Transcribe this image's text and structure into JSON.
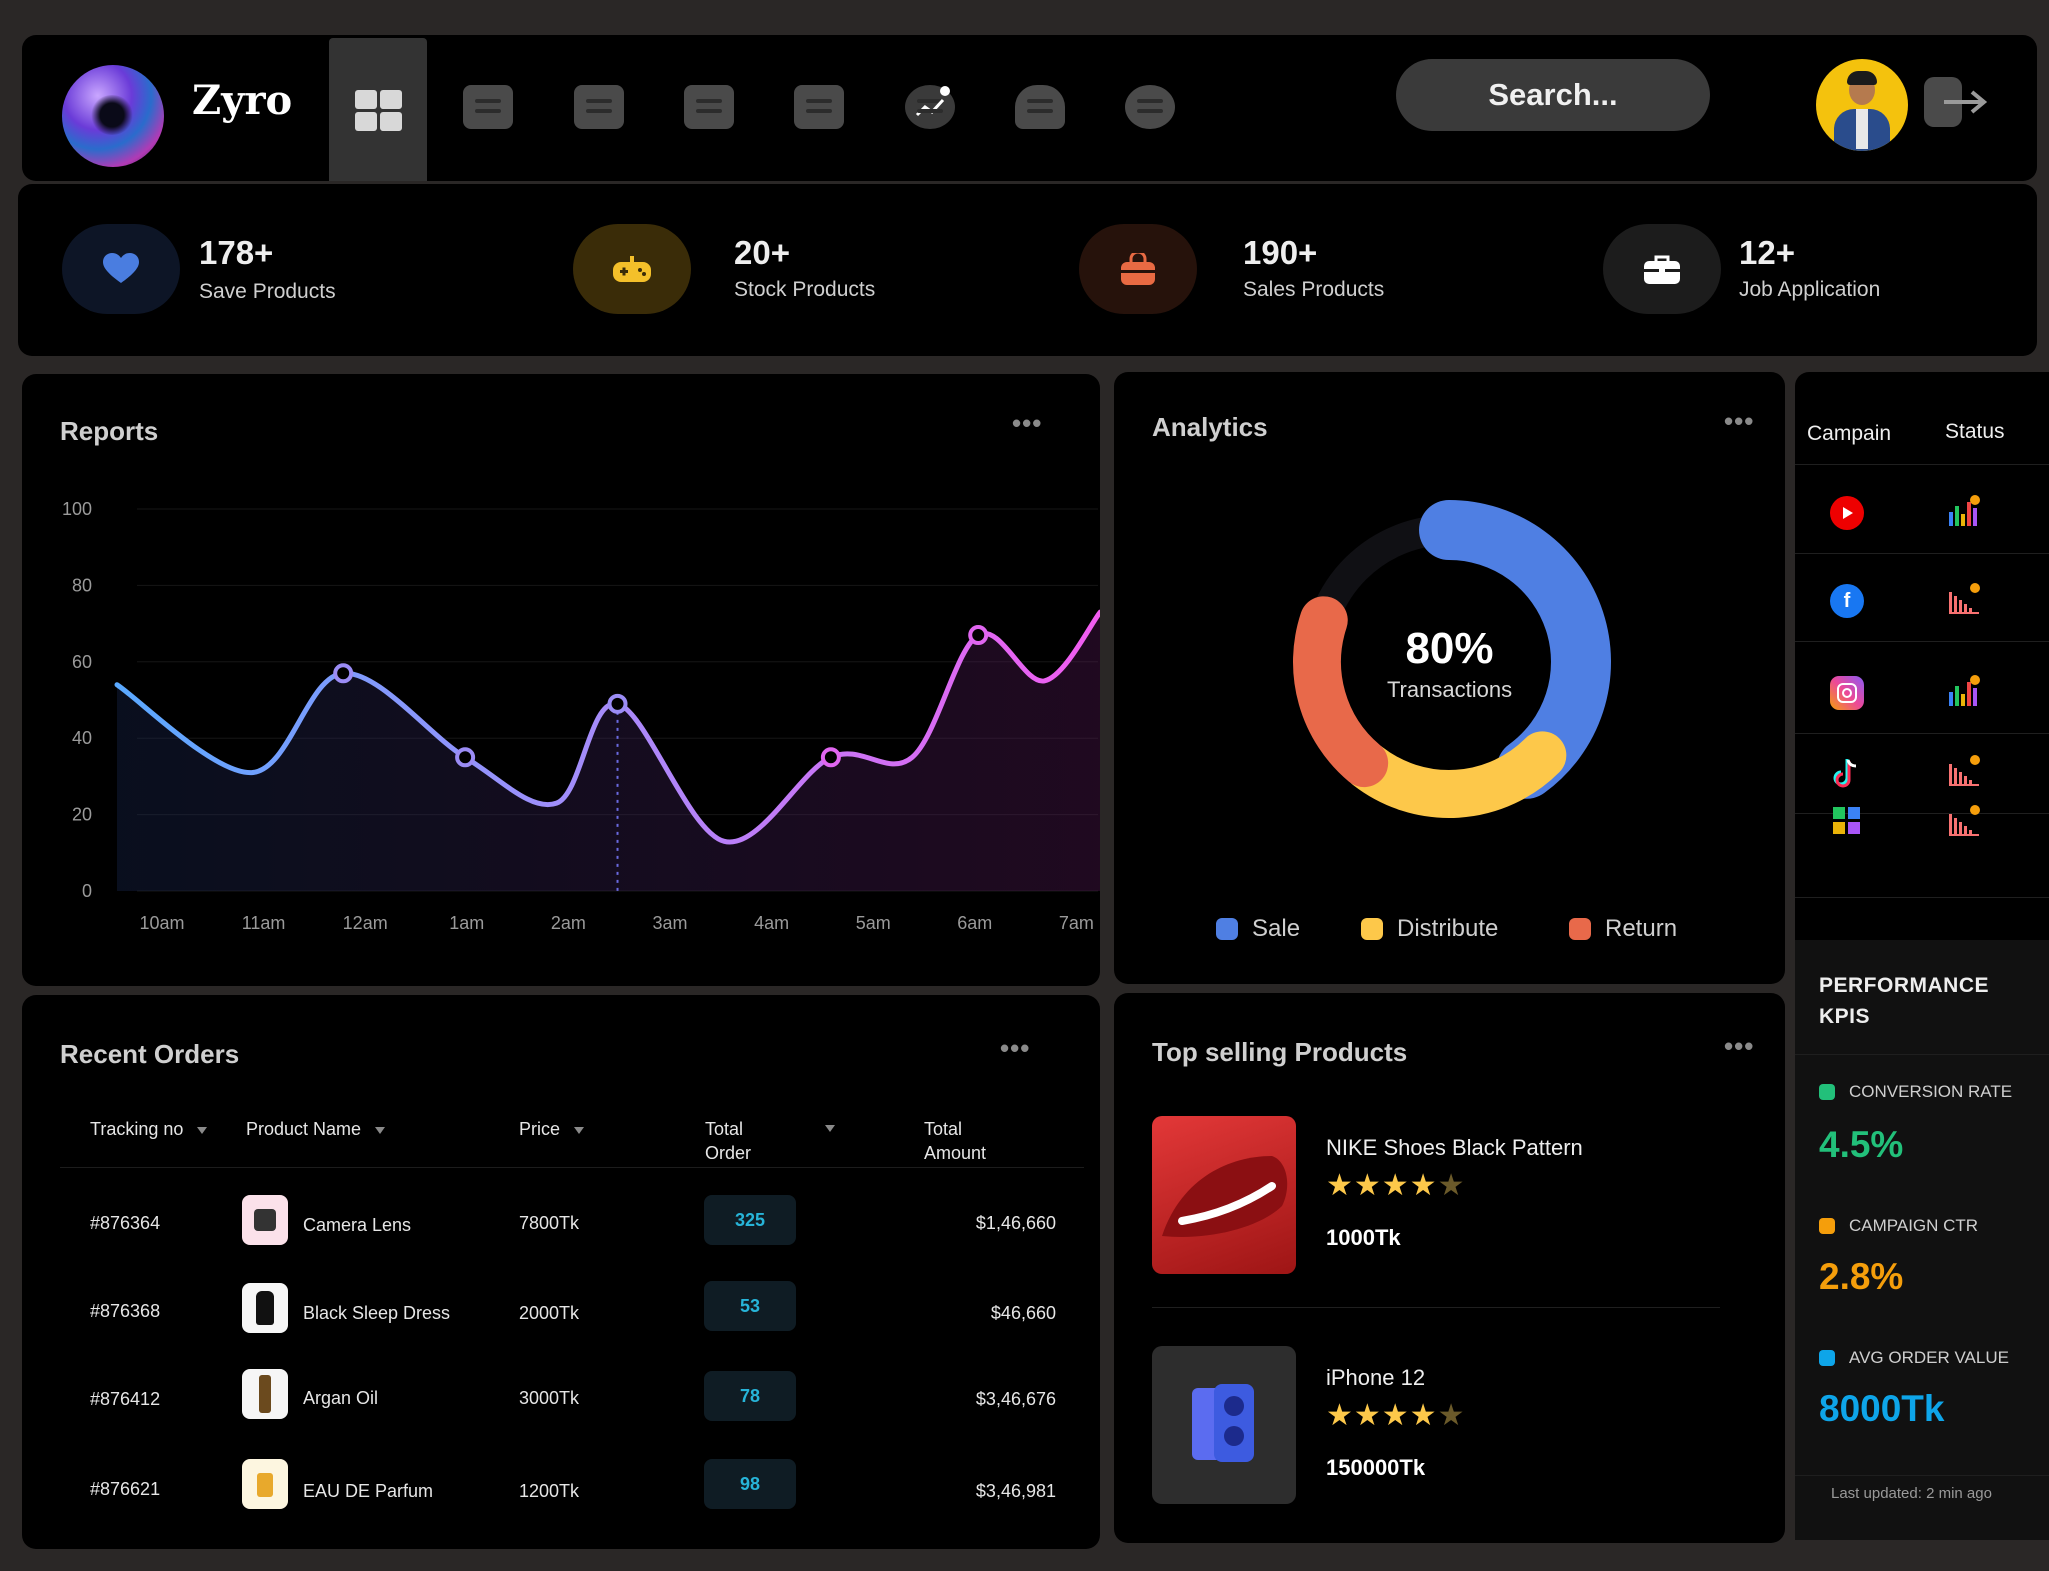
{
  "app": {
    "brand": "Zyro"
  },
  "nav": {
    "items": [
      "dashboard-icon",
      "message-icon",
      "ticket-icon",
      "document-icon",
      "calendar-icon",
      "analytics-icon",
      "bell-icon",
      "gear-icon"
    ],
    "search_placeholder": "Search..."
  },
  "stats": [
    {
      "value": "178+",
      "label": "Save Products",
      "icon": "heart-icon",
      "color": "#4a7de0"
    },
    {
      "value": "20+",
      "label": "Stock Products",
      "icon": "gamepad-icon",
      "color": "#f4c02a"
    },
    {
      "value": "190+",
      "label": "Sales Products",
      "icon": "bag-icon",
      "color": "#e86a43"
    },
    {
      "value": "12+",
      "label": "Job Application",
      "icon": "briefcase-icon",
      "color": "#ffffff"
    }
  ],
  "reports": {
    "title": "Reports",
    "chart_data": {
      "type": "line",
      "categories": [
        "10am",
        "11am",
        "12am",
        "1am",
        "2am",
        "3am",
        "4am",
        "5am",
        "6am",
        "7am"
      ],
      "ylim": [
        0,
        100
      ],
      "yticks": [
        0,
        20,
        40,
        60,
        80,
        100
      ],
      "x": [
        0,
        1.1,
        2.0,
        3.2,
        4.1,
        4.7,
        5.75,
        6.8,
        7.6,
        8.25,
        8.9,
        9.45
      ],
      "values": [
        54,
        31,
        57,
        35,
        23,
        49,
        13,
        35,
        35,
        67,
        55,
        73
      ],
      "markers": [
        2,
        3,
        5,
        7,
        9
      ],
      "highlight_index": 5,
      "grid": true
    }
  },
  "analytics": {
    "title": "Analytics",
    "center_value": "80%",
    "center_label": "Transactions",
    "chart_data": {
      "type": "pie",
      "donut": true,
      "slices": [
        {
          "name": "Sale",
          "value": 40,
          "color": "#4f7fe3"
        },
        {
          "name": "Distribute",
          "value": 23,
          "color": "#fdc84a"
        },
        {
          "name": "Return",
          "value": 19,
          "color": "#e8694a"
        }
      ]
    },
    "legend": [
      {
        "label": "Sale",
        "color": "#4f7fe3"
      },
      {
        "label": "Distribute",
        "color": "#fdc84a"
      },
      {
        "label": "Return",
        "color": "#e8694a"
      }
    ]
  },
  "campaign": {
    "headers": {
      "campaign": "Campain",
      "status": "Status"
    },
    "rows": [
      {
        "platform": "youtube-icon",
        "status": "bars-up-icon"
      },
      {
        "platform": "facebook-icon",
        "status": "bars-down-icon"
      },
      {
        "platform": "instagram-icon",
        "status": "bars-up-icon"
      },
      {
        "platform": "tiktok-icon",
        "status": "bars-down-icon"
      },
      {
        "platform": "apps-icon",
        "status": "bars-down-icon"
      }
    ]
  },
  "kpis": {
    "title": "PERFORMANCE KPIS",
    "items": [
      {
        "label": "CONVERSION RATE",
        "value": "4.5%",
        "color": "#22c07a"
      },
      {
        "label": "CAMPAIGN CTR",
        "value": "2.8%",
        "color": "#f59e0b"
      },
      {
        "label": "AVG ORDER VALUE",
        "value": "8000Tk",
        "color": "#0ea5e9"
      }
    ],
    "footer": "Last updated: 2 min ago"
  },
  "orders": {
    "title": "Recent Orders",
    "headers": {
      "tracking": "Tracking no",
      "product": "Product Name",
      "price": "Price",
      "total_order": "Total\nOrder",
      "total_amount": "Total\nAmount"
    },
    "rows": [
      {
        "tracking": "#876364",
        "product": "Camera Lens",
        "price": "7800Tk",
        "orders": "325",
        "amount": "$1,46,660"
      },
      {
        "tracking": "#876368",
        "product": "Black Sleep Dress",
        "price": "2000Tk",
        "orders": "53",
        "amount": "$46,660"
      },
      {
        "tracking": "#876412",
        "product": "Argan Oil",
        "price": "3000Tk",
        "orders": "78",
        "amount": "$3,46,676"
      },
      {
        "tracking": "#876621",
        "product": "EAU DE Parfum",
        "price": "1200Tk",
        "orders": "98",
        "amount": "$3,46,981"
      }
    ]
  },
  "top_selling": {
    "title": "Top selling Products",
    "products": [
      {
        "name": "NIKE Shoes Black Pattern",
        "rating": 4,
        "price": "1000Tk"
      },
      {
        "name": "iPhone 12",
        "rating": 4,
        "price": "150000Tk"
      }
    ]
  }
}
